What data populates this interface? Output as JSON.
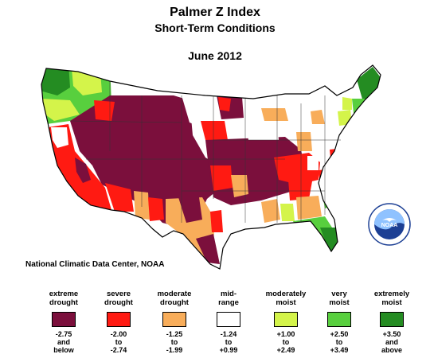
{
  "title": "Palmer Z Index",
  "subtitle": "Short-Term Conditions",
  "date": "June 2012",
  "source": "National Climatic Data Center, NOAA",
  "logo_text": "NOAA",
  "colors": {
    "extreme_drought": "#7b0f3c",
    "severe_drought": "#ff1a12",
    "moderate_drought": "#f8ad5a",
    "mid_range": "#ffffff",
    "moderately_moist": "#d4f44a",
    "very_moist": "#58cf3e",
    "extremely_moist": "#248c22"
  },
  "legend": [
    {
      "label": [
        "extreme",
        "drought"
      ],
      "range": [
        "-2.75",
        "and",
        "below"
      ],
      "color": "#7b0f3c"
    },
    {
      "label": [
        "severe",
        "drought"
      ],
      "range": [
        "-2.00",
        "to",
        "-2.74"
      ],
      "color": "#ff1a12"
    },
    {
      "label": [
        "moderate",
        "drought"
      ],
      "range": [
        "-1.25",
        "to",
        "-1.99"
      ],
      "color": "#f8ad5a"
    },
    {
      "label": [
        "mid-",
        "range"
      ],
      "range": [
        "-1.24",
        "to",
        "+0.99"
      ],
      "color": "#ffffff"
    },
    {
      "label": [
        "moderately",
        "moist"
      ],
      "range": [
        "+1.00",
        "to",
        "+2.49"
      ],
      "color": "#d4f44a"
    },
    {
      "label": [
        "very",
        "moist"
      ],
      "range": [
        "+2.50",
        "to",
        "+3.49"
      ],
      "color": "#58cf3e"
    },
    {
      "label": [
        "extremely",
        "moist"
      ],
      "range": [
        "+3.50",
        "and",
        "above"
      ],
      "color": "#248c22"
    }
  ]
}
